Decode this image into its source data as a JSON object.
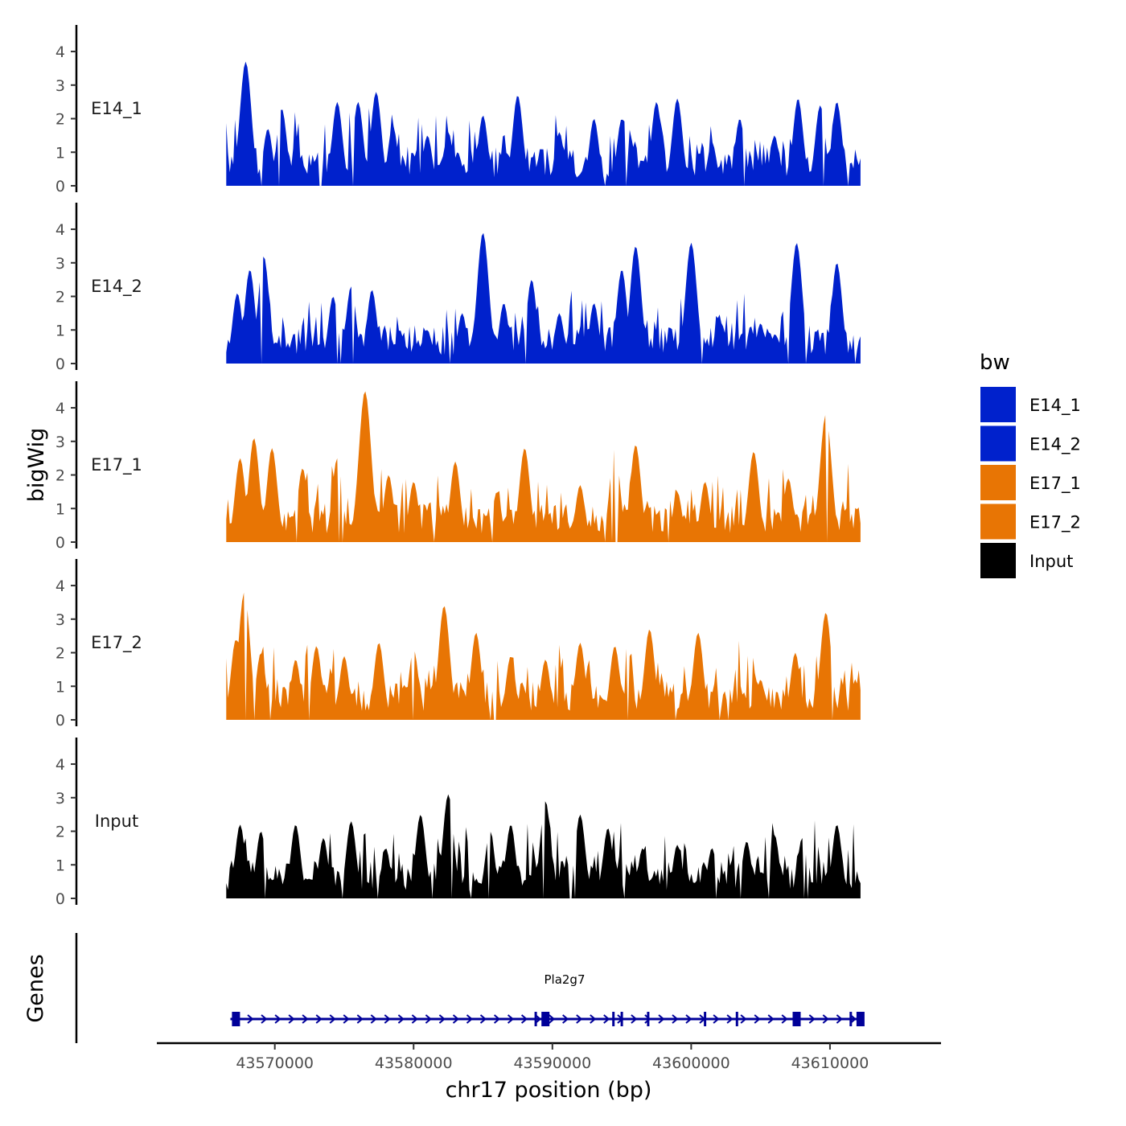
{
  "chart_data": {
    "type": "area",
    "ylabel": "bigWig",
    "xlabel": "chr17 position (bp)",
    "gene_track_label": "Genes",
    "ylim": [
      0,
      4.6
    ],
    "yticks": [
      0,
      1,
      2,
      3,
      4
    ],
    "xlim": [
      43561500,
      43618000
    ],
    "xticks": [
      43570000,
      43580000,
      43590000,
      43600000,
      43610000
    ],
    "xtick_labels": [
      "43570000",
      "43580000",
      "43590000",
      "43600000",
      "43610000"
    ],
    "data_range": [
      43566500,
      43612200
    ],
    "legend": {
      "title": "bw",
      "entries": [
        {
          "name": "E14_1",
          "color": "#0021CC"
        },
        {
          "name": "E14_2",
          "color": "#0021CC"
        },
        {
          "name": "E17_1",
          "color": "#E87504"
        },
        {
          "name": "E17_2",
          "color": "#E87504"
        },
        {
          "name": "Input",
          "color": "#000000"
        }
      ]
    },
    "series": [
      {
        "name": "E14_1",
        "label": "E14_1",
        "color": "#0021CC",
        "peaks": [
          [
            43567900,
            3.7
          ],
          [
            43569500,
            1.7
          ],
          [
            43570500,
            2.3
          ],
          [
            43572500,
            0.0
          ],
          [
            43574500,
            2.5
          ],
          [
            43576000,
            2.5
          ],
          [
            43577300,
            2.8
          ],
          [
            43578500,
            1.8
          ],
          [
            43581000,
            1.5
          ],
          [
            43582500,
            1.6
          ],
          [
            43585000,
            2.1
          ],
          [
            43587500,
            2.7
          ],
          [
            43590500,
            1.6
          ],
          [
            43593000,
            2.0
          ],
          [
            43595000,
            2.0
          ],
          [
            43597500,
            2.5
          ],
          [
            43599000,
            2.6
          ],
          [
            43601500,
            1.3
          ],
          [
            43603500,
            2.0
          ],
          [
            43606000,
            1.5
          ],
          [
            43607700,
            2.6
          ],
          [
            43609300,
            2.4
          ],
          [
            43610500,
            2.5
          ]
        ]
      },
      {
        "name": "E14_2",
        "label": "E14_2",
        "color": "#0021CC",
        "peaks": [
          [
            43567300,
            2.1
          ],
          [
            43568200,
            2.8
          ],
          [
            43569200,
            3.2
          ],
          [
            43572000,
            0.5
          ],
          [
            43574200,
            2.0
          ],
          [
            43575500,
            2.3
          ],
          [
            43577000,
            2.2
          ],
          [
            43579000,
            1.0
          ],
          [
            43581000,
            1.0
          ],
          [
            43583500,
            1.5
          ],
          [
            43585000,
            3.9
          ],
          [
            43586500,
            1.8
          ],
          [
            43588500,
            2.5
          ],
          [
            43590500,
            1.5
          ],
          [
            43593000,
            1.8
          ],
          [
            43595000,
            2.8
          ],
          [
            43596000,
            3.5
          ],
          [
            43600000,
            3.6
          ],
          [
            43602000,
            1.4
          ],
          [
            43605000,
            1.2
          ],
          [
            43607600,
            3.6
          ],
          [
            43610500,
            3.0
          ]
        ]
      },
      {
        "name": "E17_1",
        "label": "E17_1",
        "color": "#E87504",
        "peaks": [
          [
            43567500,
            2.5
          ],
          [
            43568500,
            3.1
          ],
          [
            43569800,
            2.8
          ],
          [
            43572000,
            2.2
          ],
          [
            43574500,
            2.5
          ],
          [
            43576500,
            4.5
          ],
          [
            43578200,
            2.0
          ],
          [
            43580000,
            1.8
          ],
          [
            43583000,
            2.4
          ],
          [
            43586000,
            1.5
          ],
          [
            43588000,
            2.8
          ],
          [
            43592000,
            1.7
          ],
          [
            43594500,
            2.8
          ],
          [
            43596000,
            2.9
          ],
          [
            43599000,
            1.5
          ],
          [
            43601000,
            1.8
          ],
          [
            43604500,
            2.7
          ],
          [
            43607000,
            1.9
          ],
          [
            43609700,
            3.8
          ]
        ]
      },
      {
        "name": "E17_2",
        "label": "E17_2",
        "color": "#E87504",
        "peaks": [
          [
            43567200,
            2.4
          ],
          [
            43567800,
            3.8
          ],
          [
            43569000,
            2.0
          ],
          [
            43571500,
            1.8
          ],
          [
            43573000,
            2.2
          ],
          [
            43575000,
            1.9
          ],
          [
            43577500,
            2.3
          ],
          [
            43580000,
            2.1
          ],
          [
            43582200,
            3.4
          ],
          [
            43584500,
            2.6
          ],
          [
            43587000,
            1.9
          ],
          [
            43589500,
            1.8
          ],
          [
            43592000,
            2.3
          ],
          [
            43594500,
            2.2
          ],
          [
            43597000,
            2.7
          ],
          [
            43600500,
            2.6
          ],
          [
            43602500,
            0.6
          ],
          [
            43605000,
            1.2
          ],
          [
            43607500,
            2.0
          ],
          [
            43609700,
            3.2
          ],
          [
            43612000,
            1.1
          ]
        ]
      },
      {
        "name": "Input",
        "label": "Input",
        "color": "#000000",
        "peaks": [
          [
            43567500,
            2.2
          ],
          [
            43569000,
            2.0
          ],
          [
            43571500,
            2.2
          ],
          [
            43573500,
            1.8
          ],
          [
            43575500,
            2.3
          ],
          [
            43578000,
            1.5
          ],
          [
            43580500,
            2.5
          ],
          [
            43582500,
            3.1
          ],
          [
            43585500,
            2.0
          ],
          [
            43587000,
            2.2
          ],
          [
            43589500,
            2.9
          ],
          [
            43592000,
            2.5
          ],
          [
            43594000,
            2.1
          ],
          [
            43596500,
            1.5
          ],
          [
            43599000,
            1.6
          ],
          [
            43601500,
            1.5
          ],
          [
            43604000,
            1.7
          ],
          [
            43606000,
            1.9
          ],
          [
            43608000,
            1.8
          ],
          [
            43610500,
            2.2
          ]
        ]
      }
    ],
    "gene": {
      "name": "Pla2g7",
      "start": 43566800,
      "end": 43612200,
      "color": "#000099",
      "strand": "+",
      "exons": [
        43567200,
        43588800,
        43589500,
        43594400,
        43595000,
        43596900,
        43601000,
        43603300,
        43607600,
        43611500,
        43612200
      ]
    }
  }
}
